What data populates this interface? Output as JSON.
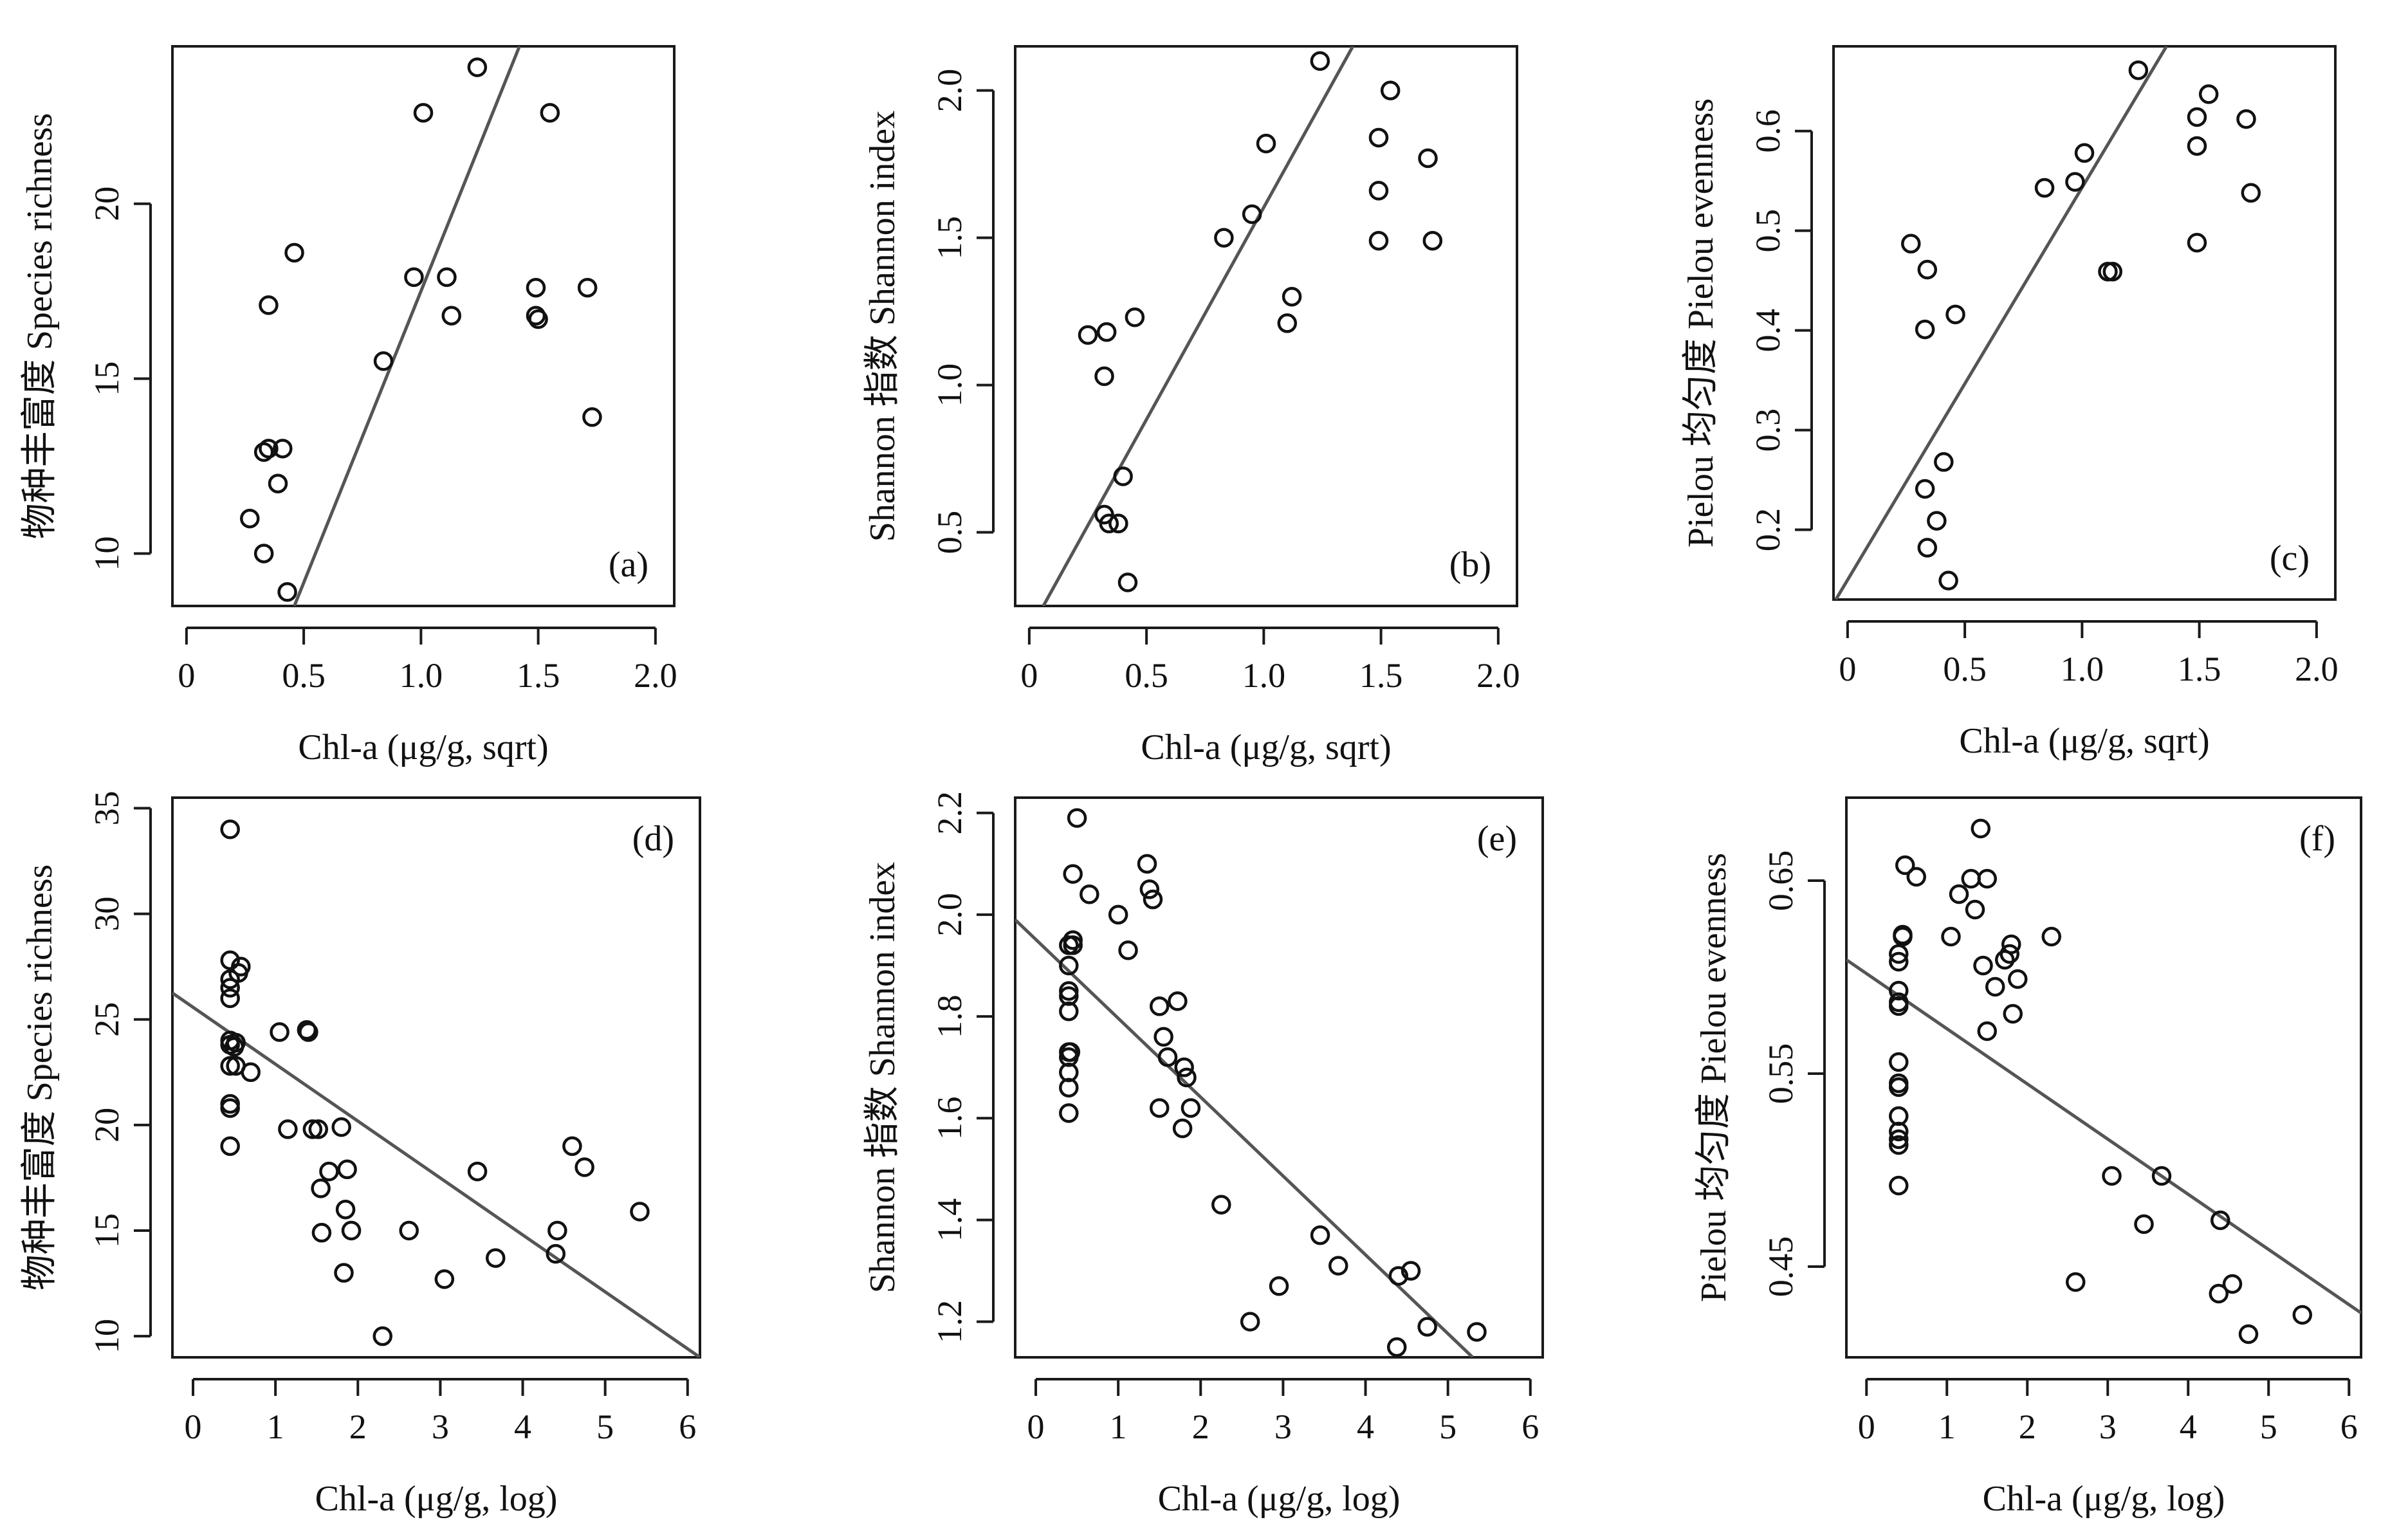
{
  "chart_data": [
    {
      "type": "scatter",
      "panel_label": "(a)",
      "xlabel": "Chl-a (μg/g, sqrt)",
      "ylabel": "物种丰富度  Species  richness",
      "xlim": [
        -0.06,
        2.08
      ],
      "ylim": [
        8.5,
        24.5
      ],
      "xticks": [
        0,
        0.5,
        1.0,
        1.5,
        2.0
      ],
      "xtick_labels": [
        "0",
        "0.5",
        "1.0",
        "1.5",
        "2.0"
      ],
      "yticks": [
        10,
        15,
        20
      ],
      "ytick_labels": [
        "10",
        "15",
        "20"
      ],
      "grid": false,
      "points": [
        [
          0.27,
          11.0
        ],
        [
          0.33,
          10.0
        ],
        [
          0.33,
          12.9
        ],
        [
          0.35,
          17.1
        ],
        [
          0.35,
          13.0
        ],
        [
          0.39,
          12.0
        ],
        [
          0.41,
          13.0
        ],
        [
          0.43,
          8.9
        ],
        [
          0.46,
          18.6
        ],
        [
          0.84,
          15.5
        ],
        [
          0.97,
          17.9
        ],
        [
          1.01,
          22.6
        ],
        [
          1.11,
          17.9
        ],
        [
          1.13,
          16.8
        ],
        [
          1.24,
          23.9
        ],
        [
          1.49,
          17.6
        ],
        [
          1.49,
          16.8
        ],
        [
          1.5,
          16.7
        ],
        [
          1.55,
          22.6
        ],
        [
          1.71,
          17.6
        ],
        [
          1.73,
          13.9
        ]
      ],
      "fit_line": [
        [
          0.46,
          8.5
        ],
        [
          1.42,
          24.5
        ]
      ]
    },
    {
      "type": "scatter",
      "panel_label": "(b)",
      "xlabel": "Chl-a (μg/g, sqrt)",
      "ylabel": "Shannon 指数  Shannon  index",
      "xlim": [
        -0.06,
        2.08
      ],
      "ylim": [
        0.25,
        2.15
      ],
      "xticks": [
        0,
        0.5,
        1.0,
        1.5,
        2.0
      ],
      "xtick_labels": [
        "0",
        "0.5",
        "1.0",
        "1.5",
        "2.0"
      ],
      "yticks": [
        0.5,
        1.0,
        1.5,
        2.0
      ],
      "ytick_labels": [
        "0.5",
        "1.0",
        "1.5",
        "2.0"
      ],
      "grid": false,
      "points": [
        [
          0.25,
          1.17
        ],
        [
          0.32,
          1.03
        ],
        [
          0.33,
          1.18
        ],
        [
          0.32,
          0.56
        ],
        [
          0.34,
          0.53
        ],
        [
          0.38,
          0.53
        ],
        [
          0.4,
          0.69
        ],
        [
          0.42,
          0.33
        ],
        [
          0.45,
          1.23
        ],
        [
          0.83,
          1.5
        ],
        [
          0.95,
          1.58
        ],
        [
          1.01,
          1.82
        ],
        [
          1.1,
          1.21
        ],
        [
          1.12,
          1.3
        ],
        [
          1.24,
          2.1
        ],
        [
          1.49,
          1.84
        ],
        [
          1.49,
          1.66
        ],
        [
          1.49,
          1.49
        ],
        [
          1.54,
          2.0
        ],
        [
          1.7,
          1.77
        ],
        [
          1.72,
          1.49
        ]
      ],
      "fit_line": [
        [
          0.06,
          0.25
        ],
        [
          1.38,
          2.15
        ]
      ]
    },
    {
      "type": "scatter",
      "panel_label": "(c)",
      "xlabel": "Chl-a (μg/g, sqrt)",
      "ylabel": "Pielou 均匀度  Pielou evenness",
      "xlim": [
        -0.06,
        2.08
      ],
      "ylim": [
        0.13,
        0.685
      ],
      "xticks": [
        0,
        0.5,
        1.0,
        1.5,
        2.0
      ],
      "xtick_labels": [
        "0",
        "0.5",
        "1.0",
        "1.5",
        "2.0"
      ],
      "yticks": [
        0.2,
        0.3,
        0.4,
        0.5,
        0.6
      ],
      "ytick_labels": [
        "0.2",
        "0.3",
        "0.4",
        "0.5",
        "0.6"
      ],
      "grid": false,
      "points": [
        [
          0.27,
          0.487
        ],
        [
          0.33,
          0.401
        ],
        [
          0.34,
          0.461
        ],
        [
          0.33,
          0.241
        ],
        [
          0.34,
          0.182
        ],
        [
          0.38,
          0.209
        ],
        [
          0.41,
          0.268
        ],
        [
          0.43,
          0.149
        ],
        [
          0.46,
          0.416
        ],
        [
          0.84,
          0.543
        ],
        [
          0.97,
          0.549
        ],
        [
          1.01,
          0.578
        ],
        [
          1.11,
          0.459
        ],
        [
          1.13,
          0.459
        ],
        [
          1.24,
          0.661
        ],
        [
          1.49,
          0.614
        ],
        [
          1.49,
          0.585
        ],
        [
          1.49,
          0.488
        ],
        [
          1.54,
          0.637
        ],
        [
          1.7,
          0.612
        ],
        [
          1.72,
          0.538
        ]
      ],
      "fit_line": [
        [
          -0.05,
          0.13
        ],
        [
          1.36,
          0.685
        ]
      ]
    },
    {
      "type": "scatter",
      "panel_label": "(d)",
      "xlabel": "Chl-a (μg/g, log)",
      "ylabel": "物种丰富度  Species  richness",
      "xlim": [
        -0.25,
        6.15
      ],
      "ylim": [
        9.0,
        35.5
      ],
      "xticks": [
        0,
        1,
        2,
        3,
        4,
        5,
        6
      ],
      "xtick_labels": [
        "0",
        "1",
        "2",
        "3",
        "4",
        "5",
        "6"
      ],
      "yticks": [
        10,
        15,
        20,
        25,
        30,
        35
      ],
      "ytick_labels": [
        "10",
        "15",
        "20",
        "25",
        "30",
        "35"
      ],
      "grid": false,
      "points": [
        [
          0.45,
          34.0
        ],
        [
          0.45,
          27.8
        ],
        [
          0.45,
          26.0
        ],
        [
          0.45,
          26.5
        ],
        [
          0.45,
          26.9
        ],
        [
          0.45,
          23.8
        ],
        [
          0.45,
          24.0
        ],
        [
          0.45,
          22.8
        ],
        [
          0.45,
          21.0
        ],
        [
          0.45,
          20.8
        ],
        [
          0.45,
          19.0
        ],
        [
          0.52,
          23.9
        ],
        [
          0.5,
          23.7
        ],
        [
          0.52,
          22.8
        ],
        [
          0.55,
          27.2
        ],
        [
          0.58,
          27.5
        ],
        [
          0.7,
          22.5
        ],
        [
          1.05,
          24.4
        ],
        [
          1.15,
          19.8
        ],
        [
          1.38,
          24.5
        ],
        [
          1.4,
          24.4
        ],
        [
          1.45,
          19.8
        ],
        [
          1.52,
          19.8
        ],
        [
          1.55,
          17.0
        ],
        [
          1.56,
          14.9
        ],
        [
          1.65,
          17.8
        ],
        [
          1.8,
          19.9
        ],
        [
          1.83,
          13.0
        ],
        [
          1.85,
          16.0
        ],
        [
          1.87,
          17.9
        ],
        [
          1.92,
          15.0
        ],
        [
          2.3,
          10.0
        ],
        [
          2.62,
          15.0
        ],
        [
          3.05,
          12.7
        ],
        [
          3.45,
          17.8
        ],
        [
          3.67,
          13.7
        ],
        [
          4.4,
          13.9
        ],
        [
          4.42,
          15.0
        ],
        [
          4.6,
          19.0
        ],
        [
          4.75,
          18.0
        ],
        [
          5.42,
          15.9
        ]
      ],
      "fit_line": [
        [
          -0.25,
          26.25
        ],
        [
          6.15,
          9.0
        ]
      ]
    },
    {
      "type": "scatter",
      "panel_label": "(e)",
      "xlabel": "Chl-a (μg/g, log)",
      "ylabel": "Shannon 指数  Shannon  index",
      "xlim": [
        -0.25,
        6.15
      ],
      "ylim": [
        1.13,
        2.23
      ],
      "xticks": [
        0,
        1,
        2,
        3,
        4,
        5,
        6
      ],
      "xtick_labels": [
        "0",
        "1",
        "2",
        "3",
        "4",
        "5",
        "6"
      ],
      "yticks": [
        1.2,
        1.4,
        1.6,
        1.8,
        2.0,
        2.2
      ],
      "ytick_labels": [
        "1.2",
        "1.4",
        "1.6",
        "1.8",
        "2.0",
        "2.2"
      ],
      "grid": false,
      "points": [
        [
          0.4,
          1.94
        ],
        [
          0.4,
          1.9
        ],
        [
          0.4,
          1.85
        ],
        [
          0.4,
          1.84
        ],
        [
          0.4,
          1.81
        ],
        [
          0.4,
          1.73
        ],
        [
          0.4,
          1.72
        ],
        [
          0.4,
          1.69
        ],
        [
          0.4,
          1.66
        ],
        [
          0.4,
          1.61
        ],
        [
          0.45,
          2.08
        ],
        [
          0.45,
          1.95
        ],
        [
          0.45,
          1.94
        ],
        [
          0.42,
          1.73
        ],
        [
          0.5,
          2.19
        ],
        [
          0.65,
          2.04
        ],
        [
          1.0,
          2.0
        ],
        [
          1.12,
          1.93
        ],
        [
          1.35,
          2.1
        ],
        [
          1.38,
          2.05
        ],
        [
          1.42,
          2.03
        ],
        [
          1.5,
          1.82
        ],
        [
          1.5,
          1.62
        ],
        [
          1.55,
          1.76
        ],
        [
          1.6,
          1.72
        ],
        [
          1.72,
          1.83
        ],
        [
          1.78,
          1.58
        ],
        [
          1.8,
          1.7
        ],
        [
          1.83,
          1.68
        ],
        [
          1.88,
          1.62
        ],
        [
          2.25,
          1.43
        ],
        [
          2.6,
          1.2
        ],
        [
          2.95,
          1.27
        ],
        [
          3.45,
          1.37
        ],
        [
          3.67,
          1.31
        ],
        [
          4.38,
          1.15
        ],
        [
          4.4,
          1.29
        ],
        [
          4.55,
          1.3
        ],
        [
          4.75,
          1.19
        ],
        [
          5.35,
          1.18
        ]
      ],
      "fit_line": [
        [
          -0.25,
          1.99
        ],
        [
          5.3,
          1.13
        ]
      ]
    },
    {
      "type": "scatter",
      "panel_label": "(f)",
      "xlabel": "Chl-a (μg/g, log)",
      "ylabel": "Pielou 均匀度  Pielou evenness",
      "xlim": [
        -0.25,
        6.15
      ],
      "ylim": [
        0.403,
        0.693
      ],
      "xticks": [
        0,
        1,
        2,
        3,
        4,
        5,
        6
      ],
      "xtick_labels": [
        "0",
        "1",
        "2",
        "3",
        "4",
        "5",
        "6"
      ],
      "yticks": [
        0.45,
        0.55,
        0.65
      ],
      "ytick_labels": [
        "0.45",
        "0.55",
        "0.65"
      ],
      "grid": false,
      "points": [
        [
          0.4,
          0.612
        ],
        [
          0.4,
          0.608
        ],
        [
          0.4,
          0.593
        ],
        [
          0.4,
          0.587
        ],
        [
          0.4,
          0.585
        ],
        [
          0.4,
          0.556
        ],
        [
          0.4,
          0.545
        ],
        [
          0.4,
          0.543
        ],
        [
          0.4,
          0.528
        ],
        [
          0.4,
          0.52
        ],
        [
          0.4,
          0.516
        ],
        [
          0.4,
          0.513
        ],
        [
          0.4,
          0.492
        ],
        [
          0.45,
          0.622
        ],
        [
          0.45,
          0.621
        ],
        [
          0.48,
          0.658
        ],
        [
          0.62,
          0.652
        ],
        [
          1.05,
          0.621
        ],
        [
          1.15,
          0.643
        ],
        [
          1.3,
          0.651
        ],
        [
          1.35,
          0.635
        ],
        [
          1.42,
          0.677
        ],
        [
          1.45,
          0.606
        ],
        [
          1.5,
          0.651
        ],
        [
          1.5,
          0.572
        ],
        [
          1.6,
          0.595
        ],
        [
          1.72,
          0.609
        ],
        [
          1.78,
          0.612
        ],
        [
          1.8,
          0.617
        ],
        [
          1.82,
          0.581
        ],
        [
          1.88,
          0.599
        ],
        [
          2.3,
          0.621
        ],
        [
          2.6,
          0.442
        ],
        [
          3.05,
          0.497
        ],
        [
          3.45,
          0.472
        ],
        [
          3.67,
          0.497
        ],
        [
          4.38,
          0.436
        ],
        [
          4.4,
          0.474
        ],
        [
          4.55,
          0.441
        ],
        [
          4.75,
          0.415
        ],
        [
          5.42,
          0.425
        ]
      ],
      "fit_line": [
        [
          -0.25,
          0.609
        ],
        [
          6.15,
          0.426
        ]
      ]
    }
  ]
}
